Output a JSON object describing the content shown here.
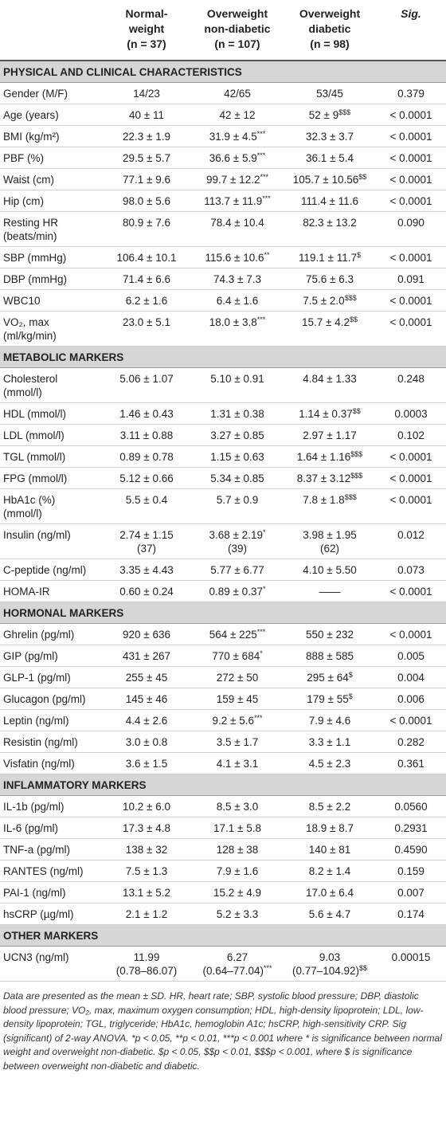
{
  "header": {
    "columns": [
      [
        "Normal-",
        "weight",
        "(n = 37)"
      ],
      [
        "Overweight",
        "non-diabetic",
        "(n = 107)"
      ],
      [
        "Overweight",
        "diabetic",
        "(n = 98)"
      ],
      [
        "Sig."
      ]
    ]
  },
  "sections": [
    {
      "title": "PHYSICAL AND CLINICAL CHARACTERISTICS",
      "rows": [
        {
          "label": [
            "Gender (M/F)"
          ],
          "cells": [
            [
              "14/23"
            ],
            [
              "42/65"
            ],
            [
              "53/45"
            ],
            [
              "0.379"
            ]
          ]
        },
        {
          "label": [
            "Age (years)"
          ],
          "cells": [
            [
              "40 ± 11"
            ],
            [
              "42 ± 12"
            ],
            [
              {
                "text": "52 ± 9",
                "sup": "$$$"
              }
            ],
            [
              "< 0.0001"
            ]
          ]
        },
        {
          "label": [
            "BMI (kg/m²)"
          ],
          "cells": [
            [
              "22.3 ± 1.9"
            ],
            [
              {
                "text": "31.9 ± 4.5",
                "sup": "***"
              }
            ],
            [
              "32.3 ± 3.7"
            ],
            [
              "< 0.0001"
            ]
          ]
        },
        {
          "label": [
            "PBF (%)"
          ],
          "cells": [
            [
              "29.5 ± 5.7"
            ],
            [
              {
                "text": "36.6 ± 5.9",
                "sup": "***"
              }
            ],
            [
              "36.1 ± 5.4"
            ],
            [
              "< 0.0001"
            ]
          ]
        },
        {
          "label": [
            "Waist (cm)"
          ],
          "cells": [
            [
              "77.1 ± 9.6"
            ],
            [
              {
                "text": "99.7 ± 12.2",
                "sup": "***"
              }
            ],
            [
              {
                "text": "105.7 ± 10.56",
                "sup": "$$"
              }
            ],
            [
              "< 0.0001"
            ]
          ]
        },
        {
          "label": [
            "Hip (cm)"
          ],
          "cells": [
            [
              "98.0 ± 5.6"
            ],
            [
              {
                "text": "113.7 ± 11.9",
                "sup": "***"
              }
            ],
            [
              "111.4 ± 11.6"
            ],
            [
              "< 0.0001"
            ]
          ]
        },
        {
          "label": [
            "Resting HR",
            "(beats/min)"
          ],
          "cells": [
            [
              "80.9 ± 7.6"
            ],
            [
              "78.4 ± 10.4"
            ],
            [
              "82.3 ± 13.2"
            ],
            [
              "0.090"
            ]
          ]
        },
        {
          "label": [
            "SBP (mmHg)"
          ],
          "cells": [
            [
              "106.4 ± 10.1"
            ],
            [
              {
                "text": "115.6 ± 10.6",
                "sup": "**"
              }
            ],
            [
              {
                "text": "119.1 ± 11.7",
                "sup": "$"
              }
            ],
            [
              "< 0.0001"
            ]
          ]
        },
        {
          "label": [
            "DBP (mmHg)"
          ],
          "cells": [
            [
              "71.4 ± 6.6"
            ],
            [
              "74.3 ± 7.3"
            ],
            [
              "75.6 ± 6.3"
            ],
            [
              "0.091"
            ]
          ]
        },
        {
          "label": [
            "WBC10"
          ],
          "cells": [
            [
              "6.2 ± 1.6"
            ],
            [
              "6.4 ± 1.6"
            ],
            [
              {
                "text": "7.5 ± 2.0",
                "sup": "$$$"
              }
            ],
            [
              "< 0.0001"
            ]
          ]
        },
        {
          "label": [
            "VO₂, max",
            "(ml/kg/min)"
          ],
          "cells": [
            [
              "23.0 ± 5.1"
            ],
            [
              {
                "text": "18.0 ± 3.8",
                "sup": "***"
              }
            ],
            [
              {
                "text": "15.7 ± 4.2",
                "sup": "$$"
              }
            ],
            [
              "< 0.0001"
            ]
          ]
        }
      ]
    },
    {
      "title": "METABOLIC MARKERS",
      "rows": [
        {
          "label": [
            "Cholesterol",
            "(mmol/l)"
          ],
          "cells": [
            [
              "5.06 ± 1.07"
            ],
            [
              "5.10 ± 0.91"
            ],
            [
              "4.84 ± 1.33"
            ],
            [
              "0.248"
            ]
          ]
        },
        {
          "label": [
            "HDL (mmol/l)"
          ],
          "cells": [
            [
              "1.46 ± 0.43"
            ],
            [
              "1.31 ± 0.38"
            ],
            [
              {
                "text": "1.14 ± 0.37",
                "sup": "$$"
              }
            ],
            [
              "0.0003"
            ]
          ]
        },
        {
          "label": [
            "LDL (mmol/l)"
          ],
          "cells": [
            [
              "3.11 ± 0.88"
            ],
            [
              "3.27 ± 0.85"
            ],
            [
              "2.97 ± 1.17"
            ],
            [
              "0.102"
            ]
          ]
        },
        {
          "label": [
            "TGL (mmol/l)"
          ],
          "cells": [
            [
              "0.89 ± 0.78"
            ],
            [
              "1.15 ± 0.63"
            ],
            [
              {
                "text": "1.64 ± 1.16",
                "sup": "$$$"
              }
            ],
            [
              "< 0.0001"
            ]
          ]
        },
        {
          "label": [
            "FPG (mmol/l)"
          ],
          "cells": [
            [
              "5.12 ± 0.66"
            ],
            [
              "5.34 ± 0.85"
            ],
            [
              {
                "text": "8.37 ± 3.12",
                "sup": "$$$"
              }
            ],
            [
              "< 0.0001"
            ]
          ]
        },
        {
          "label": [
            "HbA1c (%)",
            "(mmol/l)"
          ],
          "cells": [
            [
              "5.5 ± 0.4"
            ],
            [
              "5.7 ± 0.9"
            ],
            [
              {
                "text": "7.8 ± 1.8",
                "sup": "$$$"
              }
            ],
            [
              "< 0.0001"
            ]
          ]
        },
        {
          "label": [
            "Insulin (ng/ml)"
          ],
          "cells": [
            [
              "2.74 ± 1.15",
              "(37)"
            ],
            [
              {
                "text": "3.68 ± 2.19",
                "sup": "*"
              },
              "(39)"
            ],
            [
              "3.98 ± 1.95",
              "(62)"
            ],
            [
              "0.012"
            ]
          ]
        },
        {
          "label": [
            "C-peptide (ng/ml)"
          ],
          "cells": [
            [
              "3.35 ± 4.43"
            ],
            [
              "5.77 ± 6.77"
            ],
            [
              "4.10 ± 5.50"
            ],
            [
              "0.073"
            ]
          ]
        },
        {
          "label": [
            "HOMA-IR"
          ],
          "cells": [
            [
              "0.60 ± 0.24"
            ],
            [
              {
                "text": "0.89 ± 0.37",
                "sup": "*"
              }
            ],
            [
              "——"
            ],
            [
              "< 0.0001"
            ]
          ]
        }
      ]
    },
    {
      "title": "HORMONAL MARKERS",
      "rows": [
        {
          "label": [
            "Ghrelin (pg/ml)"
          ],
          "cells": [
            [
              "920 ± 636"
            ],
            [
              {
                "text": "564 ± 225",
                "sup": "***"
              }
            ],
            [
              "550 ± 232"
            ],
            [
              "< 0.0001"
            ]
          ]
        },
        {
          "label": [
            "GIP (pg/ml)"
          ],
          "cells": [
            [
              "431 ± 267"
            ],
            [
              {
                "text": "770 ± 684",
                "sup": "*"
              }
            ],
            [
              "888 ± 585"
            ],
            [
              "0.005"
            ]
          ]
        },
        {
          "label": [
            "GLP-1 (pg/ml)"
          ],
          "cells": [
            [
              "255 ± 45"
            ],
            [
              "272 ± 50"
            ],
            [
              {
                "text": "295 ± 64",
                "sup": "$"
              }
            ],
            [
              "0.004"
            ]
          ]
        },
        {
          "label": [
            "Glucagon (pg/ml)"
          ],
          "cells": [
            [
              "145 ± 46"
            ],
            [
              "159 ± 45"
            ],
            [
              {
                "text": "179 ± 55",
                "sup": "$"
              }
            ],
            [
              "0.006"
            ]
          ]
        },
        {
          "label": [
            "Leptin (ng/ml)"
          ],
          "cells": [
            [
              "4.4 ± 2.6"
            ],
            [
              {
                "text": "9.2 ± 5.6",
                "sup": "***"
              }
            ],
            [
              "7.9 ± 4.6"
            ],
            [
              "< 0.0001"
            ]
          ]
        },
        {
          "label": [
            "Resistin (ng/ml)"
          ],
          "cells": [
            [
              "3.0 ± 0.8"
            ],
            [
              "3.5 ± 1.7"
            ],
            [
              "3.3 ± 1.1"
            ],
            [
              "0.282"
            ]
          ]
        },
        {
          "label": [
            "Visfatin (ng/ml)"
          ],
          "cells": [
            [
              "3.6 ± 1.5"
            ],
            [
              "4.1 ± 3.1"
            ],
            [
              "4.5 ± 2.3"
            ],
            [
              "0.361"
            ]
          ]
        }
      ]
    },
    {
      "title": "INFLAMMATORY MARKERS",
      "rows": [
        {
          "label": [
            "IL-1b (pg/ml)"
          ],
          "cells": [
            [
              "10.2 ± 6.0"
            ],
            [
              "8.5 ± 3.0"
            ],
            [
              "8.5 ± 2.2"
            ],
            [
              "0.0560"
            ]
          ]
        },
        {
          "label": [
            "IL-6 (pg/ml)"
          ],
          "cells": [
            [
              "17.3 ± 4.8"
            ],
            [
              "17.1 ± 5.8"
            ],
            [
              "18.9 ± 8.7"
            ],
            [
              "0.2931"
            ]
          ]
        },
        {
          "label": [
            "TNF-a (pg/ml)"
          ],
          "cells": [
            [
              "138 ± 32"
            ],
            [
              "128 ± 38"
            ],
            [
              "140 ± 81"
            ],
            [
              "0.4590"
            ]
          ]
        },
        {
          "label": [
            "RANTES (ng/ml)"
          ],
          "cells": [
            [
              "7.5 ± 1.3"
            ],
            [
              "7.9 ± 1.6"
            ],
            [
              "8.2 ± 1.4"
            ],
            [
              "0.159"
            ]
          ]
        },
        {
          "label": [
            "PAI-1 (ng/ml)"
          ],
          "cells": [
            [
              "13.1 ± 5.2"
            ],
            [
              "15.2 ± 4.9"
            ],
            [
              "17.0 ± 6.4"
            ],
            [
              "0.007"
            ]
          ]
        },
        {
          "label": [
            "hsCRP (µg/ml)"
          ],
          "cells": [
            [
              "2.1 ± 1.2"
            ],
            [
              "5.2 ± 3.3"
            ],
            [
              "5.6 ± 4.7"
            ],
            [
              "0.174"
            ]
          ]
        }
      ]
    },
    {
      "title": "OTHER MARKERS",
      "rows": [
        {
          "label": [
            "UCN3 (ng/ml)"
          ],
          "cells": [
            [
              "11.99",
              "(0.78–86.07)"
            ],
            [
              "6.27",
              {
                "text": "(0.64–77.04)",
                "sup": "***"
              }
            ],
            [
              "9.03",
              {
                "text": "(0.77–104.92)",
                "sup": "$$"
              }
            ],
            [
              "0.00015"
            ]
          ]
        }
      ]
    }
  ],
  "footnote": "Data are presented as the mean ± SD. HR, heart rate; SBP, systolic blood pressure; DBP, diastolic blood pressure; VO₂, max, maximum oxygen consumption; HDL, high-density lipoprotein; LDL, low-density lipoprotein; TGL, triglyceride; HbA1c, hemoglobin A1c; hsCRP, high-sensitivity CRP. Sig (significant) of 2-way ANOVA. *p < 0.05, **p < 0.01, ***p < 0.001 where * is significance between normal weight and overweight non-diabetic. $p < 0.05, $$p < 0.01, $$$p < 0.001, where $ is significance between overweight non-diabetic and diabetic."
}
